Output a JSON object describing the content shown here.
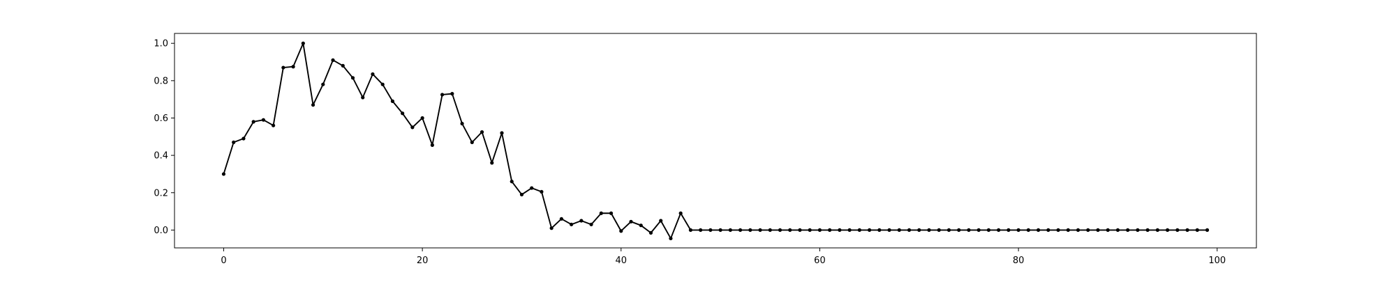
{
  "chart_data": {
    "type": "line",
    "title": "",
    "xlabel": "",
    "ylabel": "",
    "xlim": [
      -4.95,
      103.95
    ],
    "ylim": [
      -0.0955,
      1.053
    ],
    "xticks": [
      0,
      20,
      40,
      60,
      80,
      100
    ],
    "yticks": [
      0.0,
      0.2,
      0.4,
      0.6,
      0.8,
      1.0
    ],
    "xtick_labels": [
      "0",
      "20",
      "40",
      "60",
      "80",
      "100"
    ],
    "ytick_labels": [
      "0.0",
      "0.2",
      "0.4",
      "0.6",
      "0.8",
      "1.0"
    ],
    "grid": false,
    "legend": "none",
    "line_color": "#000000",
    "marker": "circle",
    "series": [
      {
        "x": [
          0,
          1,
          2,
          3,
          4,
          5,
          6,
          7,
          8,
          9,
          10,
          11,
          12,
          13,
          14,
          15,
          16,
          17,
          18,
          19,
          20,
          21,
          22,
          23,
          24,
          25,
          26,
          27,
          28,
          29,
          30,
          31,
          32,
          33,
          34,
          35,
          36,
          37,
          38,
          39,
          40,
          41,
          42,
          43,
          44,
          45,
          46,
          47,
          48,
          49,
          50,
          51,
          52,
          53,
          54,
          55,
          56,
          57,
          58,
          59,
          60,
          61,
          62,
          63,
          64,
          65,
          66,
          67,
          68,
          69,
          70,
          71,
          72,
          73,
          74,
          75,
          76,
          77,
          78,
          79,
          80,
          81,
          82,
          83,
          84,
          85,
          86,
          87,
          88,
          89,
          90,
          91,
          92,
          93,
          94,
          95,
          96,
          97,
          98,
          99
        ],
        "y": [
          0.3,
          0.47,
          0.49,
          0.58,
          0.59,
          0.56,
          0.87,
          0.875,
          1.0,
          0.67,
          0.78,
          0.91,
          0.88,
          0.815,
          0.71,
          0.835,
          0.78,
          0.69,
          0.625,
          0.55,
          0.6,
          0.455,
          0.725,
          0.73,
          0.57,
          0.47,
          0.525,
          0.36,
          0.52,
          0.26,
          0.19,
          0.225,
          0.205,
          0.01,
          0.06,
          0.03,
          0.05,
          0.03,
          0.09,
          0.09,
          -0.005,
          0.045,
          0.025,
          -0.015,
          0.05,
          -0.045,
          0.09,
          0.0,
          0.0,
          0.0,
          0.0,
          0.0,
          0.0,
          0.0,
          0.0,
          0.0,
          0.0,
          0.0,
          0.0,
          0.0,
          0.0,
          0.0,
          0.0,
          0.0,
          0.0,
          0.0,
          0.0,
          0.0,
          0.0,
          0.0,
          0.0,
          0.0,
          0.0,
          0.0,
          0.0,
          0.0,
          0.0,
          0.0,
          0.0,
          0.0,
          0.0,
          0.0,
          0.0,
          0.0,
          0.0,
          0.0,
          0.0,
          0.0,
          0.0,
          0.0,
          0.0,
          0.0,
          0.0,
          0.0,
          0.0,
          0.0,
          0.0,
          0.0,
          0.0,
          0.0
        ]
      }
    ]
  }
}
